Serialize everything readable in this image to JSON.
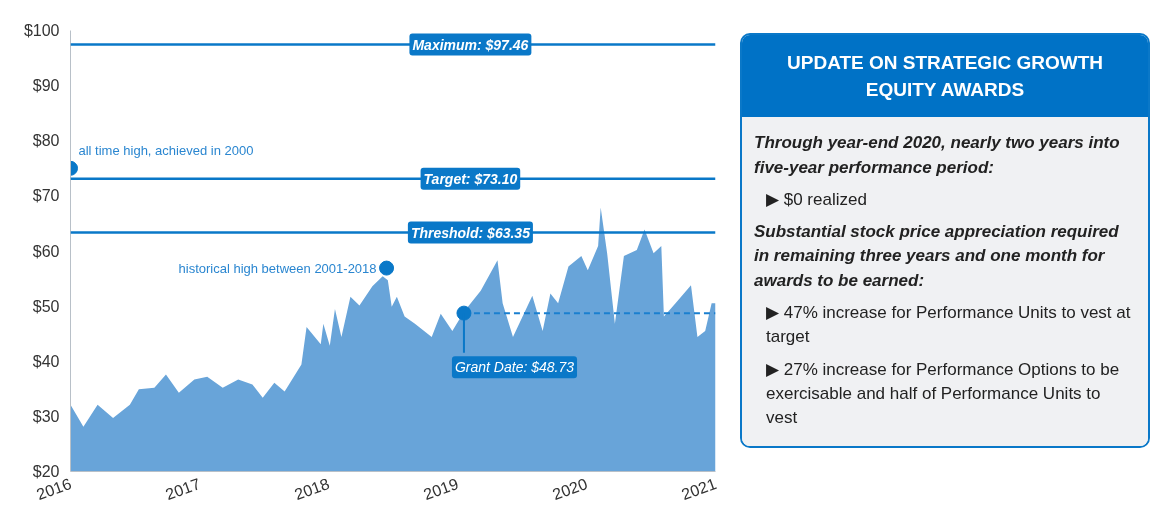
{
  "chart_data": [
    {
      "type": "area",
      "x": [
        2016.0,
        2016.1,
        2016.21,
        2016.33,
        2016.46,
        2016.53,
        2016.65,
        2016.74,
        2016.84,
        2016.96,
        2017.06,
        2017.18,
        2017.3,
        2017.41,
        2017.49,
        2017.58,
        2017.66,
        2017.79,
        2017.83,
        2017.94,
        2017.96,
        2018.01,
        2018.05,
        2018.1,
        2018.17,
        2018.24,
        2018.34,
        2018.42,
        2018.46,
        2018.49,
        2018.53,
        2018.59,
        2018.67,
        2018.8,
        2018.87,
        2018.96,
        2019.05,
        2019.18,
        2019.31,
        2019.35,
        2019.43,
        2019.58,
        2019.66,
        2019.72,
        2019.78,
        2019.86,
        2019.96,
        2020.01,
        2020.09,
        2020.11,
        2020.16,
        2020.22,
        2020.29,
        2020.39,
        2020.45,
        2020.52,
        2020.58,
        2020.6,
        2020.69,
        2020.81,
        2020.86,
        2020.92,
        2020.97,
        2021.0
      ],
      "series": [
        {
          "type": "area",
          "color": "#68a4d9",
          "values": [
            32.1,
            28.1,
            32.1,
            29.7,
            32.1,
            34.9,
            35.2,
            37.6,
            34.3,
            36.7,
            37.2,
            35.2,
            36.7,
            35.8,
            33.4,
            36.1,
            34.5,
            39.4,
            46.2,
            43.1,
            46.8,
            42.8,
            49.5,
            44.4,
            51.7,
            50.1,
            53.6,
            55.4,
            54.7,
            49.9,
            51.7,
            48.1,
            46.8,
            44.4,
            48.6,
            45.5,
            49.0,
            52.8,
            58.3,
            50.5,
            44.4,
            51.9,
            45.5,
            52.3,
            50.5,
            57.2,
            59.1,
            56.5,
            60.9,
            67.9,
            59.6,
            46.8,
            59.1,
            60.2,
            63.9,
            59.6,
            60.9,
            48.1,
            50.5,
            53.8,
            44.4,
            45.5,
            50.5,
            50.5
          ]
        },
        {
          "type": "line",
          "color": "#1a7fcf",
          "line_style": "dashed",
          "x": [
            2019.05,
            2021.0
          ],
          "values": [
            48.73,
            48.73
          ]
        }
      ],
      "xlim": [
        2016,
        2021
      ],
      "xticks": [
        2016,
        2017,
        2018,
        2019,
        2020,
        2021
      ],
      "ylim": [
        20,
        100
      ],
      "yticks": [
        {
          "value": 20,
          "label": "$20"
        },
        {
          "value": 30,
          "label": "$30"
        },
        {
          "value": 40,
          "label": "$40"
        },
        {
          "value": 50,
          "label": "$50"
        },
        {
          "value": 60,
          "label": "$60"
        },
        {
          "value": 70,
          "label": "$70"
        },
        {
          "value": 80,
          "label": "$80"
        },
        {
          "value": 90,
          "label": "$90"
        },
        {
          "value": 100,
          "label": "$100"
        }
      ],
      "ref_lines": [
        {
          "axis": "y",
          "value": 97.46,
          "label": "Maximum: $97.46",
          "color": "#0a78c8"
        },
        {
          "axis": "y",
          "value": 73.1,
          "label": "Target: $73.10",
          "color": "#0a78c8"
        },
        {
          "axis": "y",
          "value": 63.35,
          "label": "Threshold: $63.35",
          "color": "#0a78c8"
        }
      ],
      "annotations": [
        {
          "text": "all time high, achieved in 2000",
          "x": 2016.0,
          "y": 75.0
        },
        {
          "text": "historical high between 2001-2018",
          "x": 2018.45,
          "y": 56.9
        },
        {
          "text": "Grant Date: $48.73",
          "x": 2019.05,
          "y": 48.73
        }
      ],
      "grid": false
    },
    {
      "type": "other",
      "title": "UPDATE ON STRATEGIC GROWTH EQUITY AWARDS",
      "subtitle": "Through year-end 2020, nearly two years into five-year performance period:",
      "annotations": [
        "▶ $0 realized",
        "Substantial stock price appreciation required in remaining three years and one month for awards to be earned:",
        "▶ 47% increase for Performance Units to vest at target",
        "▶ 27% increase for Performance Options to be exercisable and half of Performance Units to vest"
      ]
    }
  ]
}
